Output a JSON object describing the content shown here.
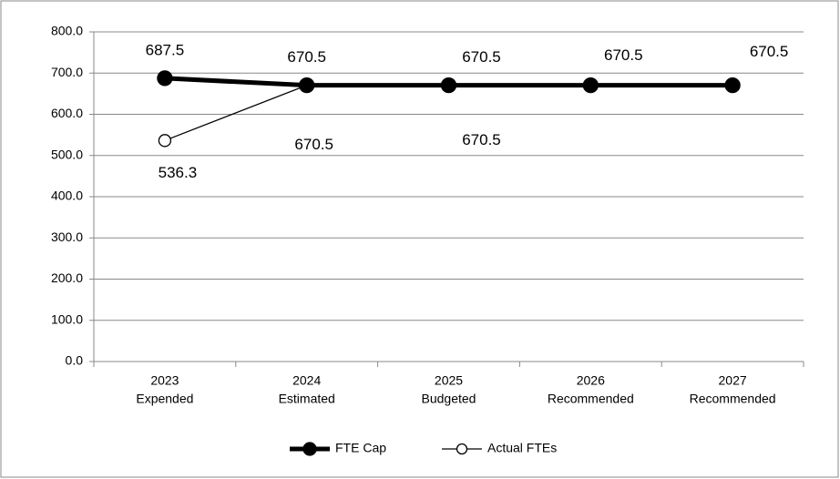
{
  "chart_data": {
    "type": "line",
    "categories": [
      [
        "2023",
        "Expended"
      ],
      [
        "2024",
        "Estimated"
      ],
      [
        "2025",
        "Budgeted"
      ],
      [
        "2026",
        "Recommended"
      ],
      [
        "2027",
        "Recommended"
      ]
    ],
    "series": [
      {
        "name": "FTE Cap",
        "color": "#000000",
        "marker": "filled",
        "values": [
          687.5,
          670.5,
          670.5,
          670.5,
          670.5
        ]
      },
      {
        "name": "Actual FTEs",
        "color": "#000000",
        "marker": "open",
        "values": [
          536.3,
          670.5,
          670.5,
          null,
          null
        ]
      }
    ],
    "ylim": [
      0,
      800
    ],
    "yticks": [
      {
        "value": 0,
        "label": "0.0"
      },
      {
        "value": 100,
        "label": "100.0"
      },
      {
        "value": 200,
        "label": "200.0"
      },
      {
        "value": 300,
        "label": "300.0"
      },
      {
        "value": 400,
        "label": "400.0"
      },
      {
        "value": 500,
        "label": "500.0"
      },
      {
        "value": 600,
        "label": "600.0"
      },
      {
        "value": 700,
        "label": "700.0"
      },
      {
        "value": 800,
        "label": "800.0"
      }
    ],
    "grid": true,
    "legend": "bottom"
  }
}
